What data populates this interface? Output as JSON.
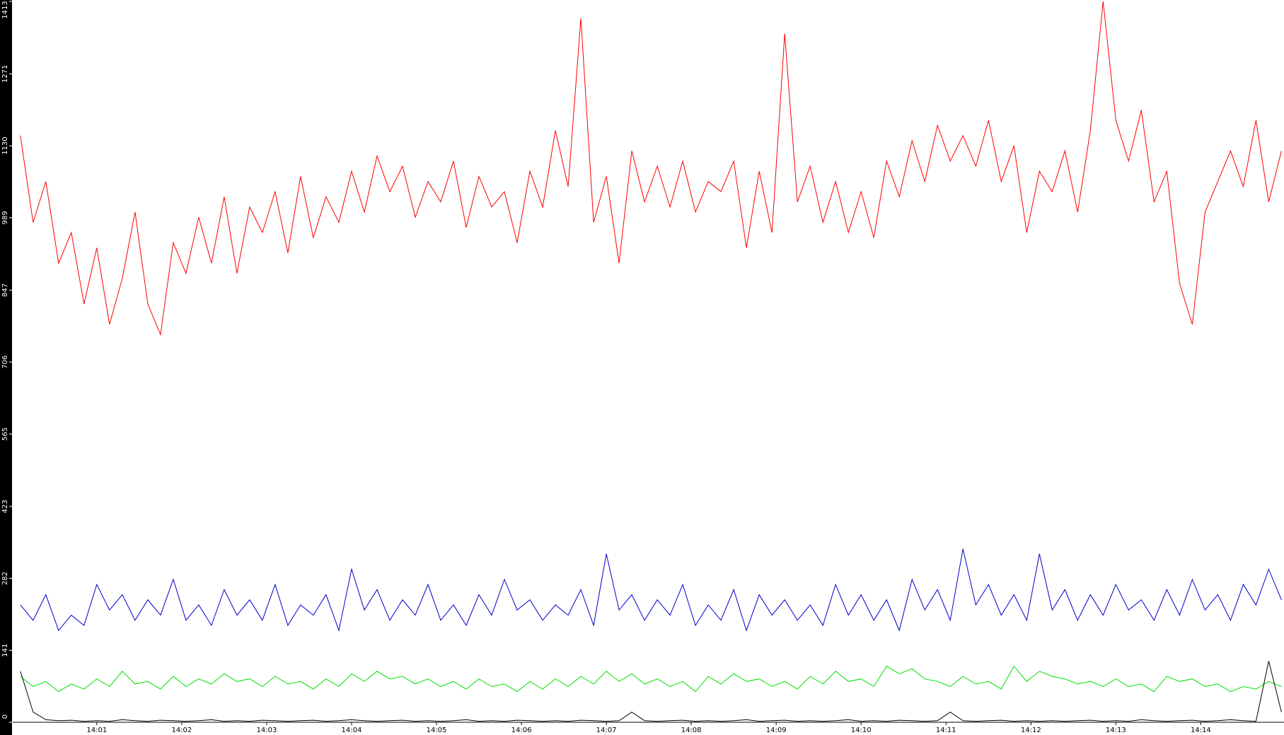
{
  "chart_data": {
    "type": "line",
    "x": [
      0.1,
      0.25,
      0.4,
      0.55,
      0.7,
      0.85,
      1,
      1.15,
      1.3,
      1.45,
      1.6,
      1.75,
      1.9,
      2.05,
      2.2,
      2.35,
      2.5,
      2.65,
      2.8,
      2.95,
      3.1,
      3.25,
      3.4,
      3.55,
      3.7,
      3.85,
      4,
      4.15,
      4.3,
      4.45,
      4.6,
      4.75,
      4.9,
      5.05,
      5.2,
      5.35,
      5.5,
      5.65,
      5.8,
      5.95,
      6.1,
      6.25,
      6.4,
      6.55,
      6.7,
      6.85,
      7,
      7.15,
      7.3,
      7.45,
      7.6,
      7.75,
      7.9,
      8.05,
      8.2,
      8.35,
      8.5,
      8.65,
      8.8,
      8.95,
      9.1,
      9.25,
      9.4,
      9.55,
      9.7,
      9.85,
      10,
      10.15,
      10.3,
      10.45,
      10.6,
      10.75,
      10.9,
      11.05,
      11.2,
      11.35,
      11.5,
      11.65,
      11.8,
      11.95,
      12.1,
      12.25,
      12.4,
      12.55,
      12.7,
      12.85,
      13,
      13.15,
      13.3,
      13.45,
      13.6,
      13.75,
      13.9,
      14.05,
      14.2,
      14.35,
      14.5,
      14.65,
      14.8,
      14.95
    ],
    "series": [
      {
        "color": "#ff0000",
        "values": [
          1150,
          980,
          1060,
          900,
          960,
          820,
          930,
          780,
          870,
          1000,
          820,
          760,
          940,
          880,
          990,
          900,
          1030,
          880,
          1010,
          960,
          1040,
          920,
          1070,
          950,
          1030,
          980,
          1080,
          1000,
          1110,
          1040,
          1090,
          990,
          1060,
          1020,
          1100,
          970,
          1070,
          1010,
          1040,
          940,
          1080,
          1010,
          1160,
          1050,
          1380,
          980,
          1070,
          900,
          1120,
          1020,
          1090,
          1010,
          1100,
          1000,
          1060,
          1040,
          1100,
          930,
          1080,
          960,
          1350,
          1020,
          1090,
          980,
          1060,
          960,
          1040,
          950,
          1100,
          1030,
          1140,
          1060,
          1170,
          1100,
          1150,
          1090,
          1180,
          1060,
          1130,
          960,
          1080,
          1040,
          1120,
          1000,
          1160,
          1413,
          1180,
          1100,
          1200,
          1020,
          1080,
          860,
          780,
          1000,
          1060,
          1120,
          1050,
          1180,
          1020,
          1120
        ]
      },
      {
        "color": "#0000cc",
        "values": [
          230,
          200,
          250,
          180,
          210,
          190,
          270,
          220,
          250,
          200,
          240,
          210,
          280,
          200,
          230,
          190,
          260,
          210,
          240,
          200,
          270,
          190,
          230,
          210,
          250,
          180,
          300,
          220,
          260,
          200,
          240,
          210,
          270,
          200,
          230,
          190,
          250,
          210,
          280,
          220,
          240,
          200,
          230,
          210,
          260,
          190,
          330,
          220,
          250,
          200,
          240,
          210,
          270,
          190,
          230,
          200,
          260,
          180,
          250,
          210,
          240,
          200,
          230,
          190,
          270,
          210,
          250,
          200,
          240,
          180,
          280,
          220,
          260,
          200,
          340,
          230,
          270,
          210,
          250,
          200,
          330,
          220,
          260,
          200,
          250,
          210,
          270,
          220,
          240,
          200,
          260,
          210,
          280,
          220,
          250,
          200,
          270,
          230,
          300,
          240
        ]
      },
      {
        "color": "#00e000",
        "values": [
          90,
          70,
          80,
          60,
          75,
          65,
          85,
          70,
          100,
          75,
          80,
          65,
          90,
          70,
          85,
          75,
          95,
          80,
          85,
          70,
          90,
          75,
          80,
          65,
          85,
          70,
          95,
          80,
          100,
          85,
          90,
          75,
          85,
          70,
          80,
          65,
          85,
          70,
          75,
          60,
          80,
          65,
          85,
          70,
          90,
          75,
          100,
          80,
          95,
          75,
          85,
          70,
          80,
          60,
          90,
          75,
          95,
          80,
          85,
          70,
          80,
          65,
          90,
          75,
          100,
          80,
          85,
          70,
          110,
          95,
          105,
          85,
          80,
          70,
          90,
          75,
          80,
          65,
          110,
          80,
          100,
          90,
          85,
          75,
          80,
          70,
          85,
          70,
          75,
          60,
          90,
          80,
          85,
          70,
          75,
          60,
          70,
          65,
          80,
          70
        ]
      },
      {
        "color": "#000000",
        "values": [
          100,
          20,
          5,
          3,
          4,
          2,
          3,
          2,
          5,
          3,
          2,
          4,
          3,
          2,
          3,
          5,
          2,
          3,
          2,
          4,
          3,
          2,
          3,
          4,
          2,
          3,
          5,
          3,
          2,
          3,
          4,
          2,
          3,
          2,
          3,
          5,
          2,
          3,
          2,
          4,
          3,
          2,
          3,
          2,
          4,
          3,
          2,
          3,
          20,
          3,
          2,
          3,
          4,
          2,
          3,
          2,
          3,
          5,
          2,
          3,
          4,
          2,
          3,
          2,
          3,
          5,
          2,
          3,
          2,
          4,
          3,
          2,
          3,
          20,
          3,
          2,
          3,
          4,
          2,
          3,
          2,
          3,
          2,
          3,
          4,
          2,
          3,
          2,
          5,
          3,
          2,
          3,
          4,
          2,
          3,
          5,
          3,
          2,
          120,
          20
        ]
      }
    ],
    "xlim": [
      0.01,
      14.98
    ],
    "xticks": [
      {
        "value": 1,
        "label": "14:01"
      },
      {
        "value": 2,
        "label": "14:02"
      },
      {
        "value": 3,
        "label": "14:03"
      },
      {
        "value": 4,
        "label": "14:04"
      },
      {
        "value": 5,
        "label": "14:05"
      },
      {
        "value": 6,
        "label": "14:06"
      },
      {
        "value": 7,
        "label": "14:07"
      },
      {
        "value": 8,
        "label": "14:08"
      },
      {
        "value": 9,
        "label": "14:09"
      },
      {
        "value": 10,
        "label": "14:10"
      },
      {
        "value": 11,
        "label": "14:11"
      },
      {
        "value": 12,
        "label": "14:12"
      },
      {
        "value": 13,
        "label": "14:13"
      },
      {
        "value": 14,
        "label": "14:14"
      }
    ],
    "ylim": [
      0,
      1413
    ],
    "yticks": [
      0,
      141,
      282,
      423,
      565,
      706,
      847,
      989,
      1130,
      1271,
      1413
    ]
  }
}
